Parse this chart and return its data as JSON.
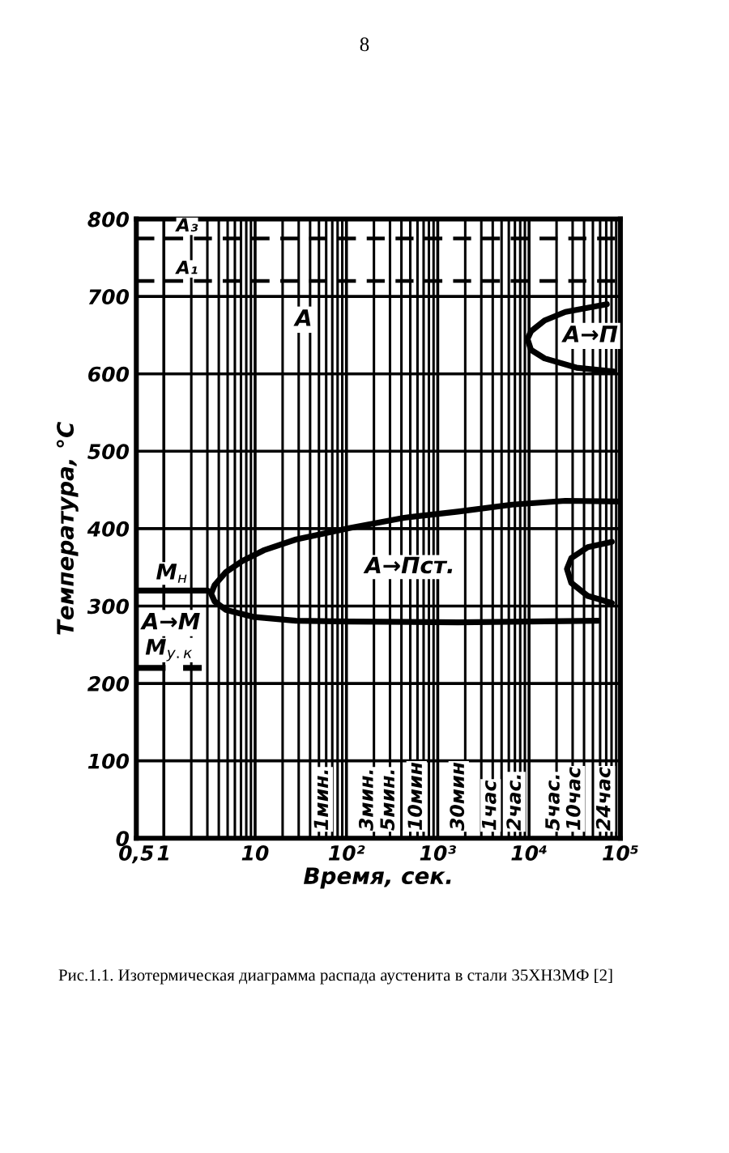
{
  "chart_data": {
    "type": "line",
    "xlabel": "Время, сек.",
    "ylabel": "Температура, °C",
    "log": "x",
    "grid": true,
    "xlim": [
      0.5,
      100000
    ],
    "xticks": [
      {
        "value": 0.5,
        "label": "0,5"
      },
      1,
      10,
      {
        "value": 100,
        "label": "10²"
      },
      {
        "value": 1000,
        "label": "10³"
      },
      {
        "value": 10000,
        "label": "10⁴"
      },
      {
        "value": 100000,
        "label": "10⁵"
      }
    ],
    "ylim": [
      0,
      800
    ],
    "yticks": [
      0,
      100,
      200,
      300,
      400,
      500,
      600,
      700,
      800
    ],
    "series": [
      {
        "color": "#000000",
        "x": [
          100000,
          25000,
          6500,
          1660,
          427,
          110,
          28,
          12.4,
          7.2,
          4.8,
          3.6,
          3.3,
          3.6,
          4.8,
          9.5,
          28,
          110,
          1660,
          57000
        ],
        "values": [
          435,
          436,
          431,
          422,
          414,
          401,
          386,
          372,
          358,
          344,
          327,
          316,
          306,
          295,
          286,
          281,
          280,
          279,
          281
        ]
      },
      {
        "color": "#000000",
        "x": [
          80500,
          44000,
          29000,
          26000,
          29000,
          44000,
          80500
        ],
        "values": [
          383,
          376,
          362,
          348,
          330,
          313,
          304
        ]
      },
      {
        "color": "#000000",
        "x": [
          71000,
          25000,
          14800,
          10500,
          9600,
          10500,
          14800,
          33000,
          85000
        ],
        "values": [
          690,
          680,
          669,
          655,
          645,
          631,
          620,
          608,
          603
        ]
      },
      {
        "name": "М$_{н}$",
        "color": "#000000",
        "x": [
          0.5,
          3
        ],
        "values": [
          320,
          320
        ]
      },
      {
        "name": "М$_{у.к}$",
        "color": "#000000",
        "x": [
          0.5,
          2.6
        ],
        "values": [
          220,
          220
        ],
        "line_style": "dashed"
      }
    ],
    "ref_lines": [
      {
        "axis": "y",
        "value": 775,
        "label": "А₃",
        "color": "#000000",
        "line_style": "dashed"
      },
      {
        "axis": "y",
        "value": 720,
        "label": "А₁",
        "color": "#000000",
        "line_style": "dashed"
      }
    ],
    "annotations": [
      "8",
      {
        "text": "А",
        "x": 34,
        "y": 670
      },
      {
        "text": "А→П",
        "x": 47000,
        "y": 649
      },
      "А→Пст.",
      {
        "text": "А→М",
        "x": 1.2,
        "y": 278
      },
      "1мин.",
      "3мин.",
      "5мин.",
      "10мин",
      "30мин",
      "1час",
      "2час.",
      "5час.",
      "10час",
      "24час",
      "Рис.1.1. Изотермическая диаграмма распада аустенита в стали 35ХН3МФ [2]"
    ]
  }
}
